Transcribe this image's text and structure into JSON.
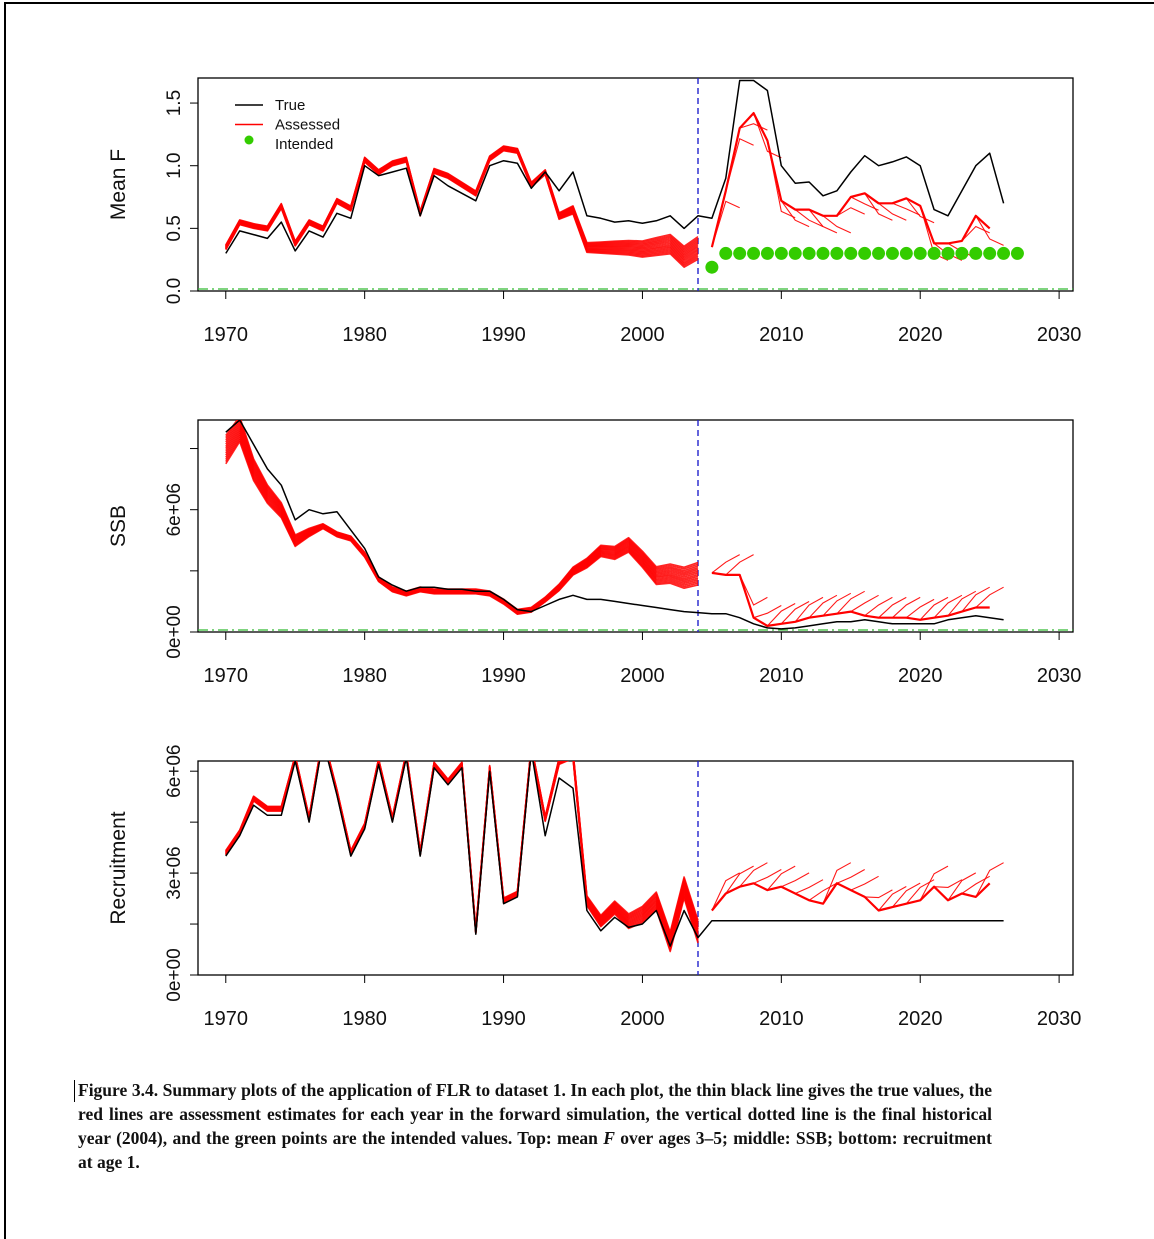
{
  "caption": {
    "p1": "Figure 3.4. Summary plots of the application of FLR to dataset 1. In each plot, the thin black line gives the true values, the red lines are assessment estimates for each year in the forward simulation, the vertical dotted line is the final historical year (2004), and the green points are the intended values. Top: mean ",
    "f": "F",
    "p2": " over ages 3–5; middle: SSB; bottom: recruitment at age 1."
  },
  "colors": {
    "true": "#000000",
    "assessed": "#ff0000",
    "intended": "#33cc00",
    "vline": "#2222cc",
    "hline": "#33bb33"
  },
  "chart_data": [
    {
      "type": "line",
      "ylabel": "Mean F",
      "xlim": [
        1968,
        2031
      ],
      "ylim": [
        0,
        1.7
      ],
      "xticks": [
        1970,
        1980,
        1990,
        2000,
        2010,
        2020,
        2030
      ],
      "yticks": [
        0.0,
        0.5,
        1.0,
        1.5
      ],
      "ytick_labels": [
        "0.0",
        "0.5",
        "1.0",
        "1.5"
      ],
      "final_historical_year": 2004,
      "reference_line_y": 0,
      "legend": {
        "position": "top-left",
        "entries": [
          "True",
          "Assessed",
          "Intended"
        ]
      },
      "series": [
        {
          "name": "True",
          "x": [
            1970,
            1971,
            1972,
            1973,
            1974,
            1975,
            1976,
            1977,
            1978,
            1979,
            1980,
            1981,
            1982,
            1983,
            1984,
            1985,
            1986,
            1987,
            1988,
            1989,
            1990,
            1991,
            1992,
            1993,
            1994,
            1995,
            1996,
            1997,
            1998,
            1999,
            2000,
            2001,
            2002,
            2003,
            2004,
            2005,
            2006,
            2007,
            2008,
            2009,
            2010,
            2011,
            2012,
            2013,
            2014,
            2015,
            2016,
            2017,
            2018,
            2019,
            2020,
            2021,
            2022,
            2023,
            2024,
            2025,
            2026
          ],
          "y": [
            0.3,
            0.48,
            0.45,
            0.42,
            0.55,
            0.32,
            0.48,
            0.43,
            0.62,
            0.58,
            1.0,
            0.92,
            0.95,
            0.98,
            0.6,
            0.92,
            0.84,
            0.78,
            0.72,
            1.0,
            1.04,
            1.02,
            0.82,
            0.95,
            0.8,
            0.95,
            0.6,
            0.58,
            0.55,
            0.56,
            0.54,
            0.56,
            0.6,
            0.5,
            0.6,
            0.58,
            0.9,
            1.68,
            1.68,
            1.6,
            1.0,
            0.86,
            0.87,
            0.76,
            0.8,
            0.95,
            1.08,
            1.0,
            1.03,
            1.07,
            1.0,
            0.65,
            0.6,
            0.8,
            1.0,
            1.1,
            0.7
          ]
        },
        {
          "name": "Assessed",
          "x": [
            1970,
            1971,
            1972,
            1973,
            1974,
            1975,
            1976,
            1977,
            1978,
            1979,
            1980,
            1981,
            1982,
            1983,
            1984,
            1985,
            1986,
            1987,
            1988,
            1989,
            1990,
            1991,
            1992,
            1993,
            1994,
            1995,
            1996,
            1997,
            1998,
            1999,
            2000,
            2001,
            2002,
            2003,
            2004
          ],
          "y": [
            0.35,
            0.55,
            0.52,
            0.5,
            0.68,
            0.38,
            0.55,
            0.5,
            0.72,
            0.66,
            1.05,
            0.95,
            1.02,
            1.05,
            0.62,
            0.96,
            0.92,
            0.85,
            0.78,
            1.06,
            1.14,
            1.12,
            0.85,
            0.95,
            0.6,
            0.65,
            0.35,
            0.35,
            0.35,
            0.35,
            0.34,
            0.36,
            0.38,
            0.28,
            0.35
          ]
        },
        {
          "name": "Assessed (projection)",
          "x": [
            2005,
            2006,
            2007,
            2008,
            2009,
            2010,
            2011,
            2012,
            2013,
            2014,
            2015,
            2016,
            2017,
            2018,
            2019,
            2020,
            2021,
            2022,
            2023,
            2024,
            2025
          ],
          "y": [
            0.35,
            0.8,
            1.3,
            1.42,
            1.2,
            0.72,
            0.65,
            0.65,
            0.6,
            0.6,
            0.75,
            0.78,
            0.7,
            0.7,
            0.74,
            0.68,
            0.38,
            0.38,
            0.4,
            0.6,
            0.5
          ]
        },
        {
          "name": "Intended",
          "x": [
            2005,
            2006,
            2007,
            2008,
            2009,
            2010,
            2011,
            2012,
            2013,
            2014,
            2015,
            2016,
            2017,
            2018,
            2019,
            2020,
            2021,
            2022,
            2023,
            2024,
            2025,
            2026,
            2027
          ],
          "y": [
            0.19,
            0.3,
            0.3,
            0.3,
            0.3,
            0.3,
            0.3,
            0.3,
            0.3,
            0.3,
            0.3,
            0.3,
            0.3,
            0.3,
            0.3,
            0.3,
            0.3,
            0.3,
            0.3,
            0.3,
            0.3,
            0.3,
            0.3
          ]
        }
      ]
    },
    {
      "type": "line",
      "ylabel": "SSB",
      "xlim": [
        1968,
        2031
      ],
      "ylim": [
        0,
        10400000
      ],
      "xticks": [
        1970,
        1980,
        1990,
        2000,
        2010,
        2020,
        2030
      ],
      "yticks": [
        0,
        3000000,
        6000000,
        9000000
      ],
      "ytick_labels": [
        "0e+00",
        "",
        "6e+06",
        ""
      ],
      "final_historical_year": 2004,
      "reference_line_y": 0,
      "series": [
        {
          "name": "True",
          "x": [
            1970,
            1971,
            1972,
            1973,
            1974,
            1975,
            1976,
            1977,
            1978,
            1979,
            1980,
            1981,
            1982,
            1983,
            1984,
            1985,
            1986,
            1987,
            1988,
            1989,
            1990,
            1991,
            1992,
            1993,
            1994,
            1995,
            1996,
            1997,
            1998,
            1999,
            2000,
            2001,
            2002,
            2003,
            2004,
            2005,
            2006,
            2007,
            2008,
            2009,
            2010,
            2011,
            2012,
            2013,
            2014,
            2015,
            2016,
            2017,
            2018,
            2019,
            2020,
            2021,
            2022,
            2023,
            2024,
            2025,
            2026
          ],
          "y": [
            9800000,
            10400000,
            9200000,
            8000000,
            7200000,
            5500000,
            6000000,
            5800000,
            5900000,
            5000000,
            4100000,
            2700000,
            2300000,
            2000000,
            2200000,
            2200000,
            2100000,
            2100000,
            2000000,
            2000000,
            1600000,
            1100000,
            1000000,
            1300000,
            1600000,
            1800000,
            1600000,
            1600000,
            1500000,
            1400000,
            1300000,
            1200000,
            1100000,
            1000000,
            950000,
            900000,
            900000,
            700000,
            400000,
            200000,
            150000,
            200000,
            300000,
            400000,
            500000,
            500000,
            600000,
            500000,
            400000,
            400000,
            400000,
            400000,
            600000,
            700000,
            800000,
            700000,
            600000
          ]
        },
        {
          "name": "Assessed",
          "x": [
            1970,
            1971,
            1972,
            1973,
            1974,
            1975,
            1976,
            1977,
            1978,
            1979,
            1980,
            1981,
            1982,
            1983,
            1984,
            1985,
            1986,
            1987,
            1988,
            1989,
            1990,
            1991,
            1992,
            1993,
            1994,
            1995,
            1996,
            1997,
            1998,
            1999,
            2000,
            2001,
            2002,
            2003,
            2004
          ],
          "y": [
            9000000,
            10000000,
            8000000,
            6800000,
            6000000,
            4500000,
            4900000,
            5200000,
            4800000,
            4600000,
            3800000,
            2600000,
            2100000,
            1900000,
            2100000,
            2000000,
            2000000,
            2000000,
            2000000,
            1900000,
            1500000,
            1000000,
            1100000,
            1600000,
            2200000,
            3000000,
            3400000,
            4000000,
            3900000,
            4300000,
            3600000,
            2800000,
            2900000,
            2700000,
            2900000
          ]
        },
        {
          "name": "Assessed (projection)",
          "x": [
            2005,
            2006,
            2007,
            2008,
            2009,
            2010,
            2011,
            2012,
            2013,
            2014,
            2015,
            2016,
            2017,
            2018,
            2019,
            2020,
            2021,
            2022,
            2023,
            2024,
            2025
          ],
          "y": [
            2900000,
            2800000,
            2800000,
            700000,
            300000,
            400000,
            500000,
            700000,
            800000,
            900000,
            1000000,
            800000,
            700000,
            700000,
            700000,
            600000,
            700000,
            800000,
            1000000,
            1200000,
            1200000
          ]
        }
      ]
    },
    {
      "type": "line",
      "ylabel": "Recruitment",
      "xlim": [
        1968,
        2031
      ],
      "ylim": [
        0,
        6300000
      ],
      "xticks": [
        1970,
        1980,
        1990,
        2000,
        2010,
        2020,
        2030
      ],
      "yticks": [
        0,
        1500000,
        3000000,
        4500000,
        6000000
      ],
      "ytick_labels": [
        "0e+00",
        "",
        "3e+06",
        "",
        "6e+06"
      ],
      "final_historical_year": 2004,
      "series": [
        {
          "name": "True",
          "x": [
            1970,
            1971,
            1972,
            1973,
            1974,
            1975,
            1976,
            1977,
            1978,
            1979,
            1980,
            1981,
            1982,
            1983,
            1984,
            1985,
            1986,
            1987,
            1988,
            1989,
            1990,
            1991,
            1992,
            1993,
            1994,
            1995,
            1996,
            1997,
            1998,
            1999,
            2000,
            2001,
            2002,
            2003,
            2004,
            2005,
            2006,
            2007,
            2008,
            2009,
            2010,
            2011,
            2012,
            2013,
            2014,
            2015,
            2016,
            2017,
            2018,
            2019,
            2020,
            2021,
            2022,
            2023,
            2024,
            2025,
            2026
          ],
          "y": [
            3500000,
            4100000,
            5000000,
            4700000,
            4700000,
            6300000,
            4500000,
            6900000,
            5300000,
            3500000,
            4300000,
            6200000,
            4500000,
            6400000,
            3500000,
            6100000,
            5600000,
            6100000,
            1200000,
            6000000,
            2100000,
            2300000,
            6600000,
            4100000,
            5800000,
            5500000,
            1900000,
            1300000,
            1700000,
            1400000,
            1500000,
            1900000,
            850000,
            1900000,
            1100000,
            1600000,
            1600000,
            1600000,
            1600000,
            1600000,
            1600000,
            1600000,
            1600000,
            1600000,
            1600000,
            1600000,
            1600000,
            1600000,
            1600000,
            1600000,
            1600000,
            1600000,
            1600000,
            1600000,
            1600000,
            1600000,
            1600000
          ]
        },
        {
          "name": "Assessed",
          "x": [
            1970,
            1971,
            1972,
            1973,
            1974,
            1975,
            1976,
            1977,
            1978,
            1979,
            1980,
            1981,
            1982,
            1983,
            1984,
            1985,
            1986,
            1987,
            1988,
            1989,
            1990,
            1991,
            1992,
            1993,
            1994,
            1995,
            1996,
            1997,
            1998,
            1999,
            2000,
            2001,
            2002,
            2003,
            2004
          ],
          "y": [
            3600000,
            4200000,
            5200000,
            4900000,
            4900000,
            6400000,
            4600000,
            7000000,
            5400000,
            3600000,
            4400000,
            6300000,
            4600000,
            6500000,
            3600000,
            6200000,
            5700000,
            6200000,
            1300000,
            6100000,
            2200000,
            2400000,
            6700000,
            4600000,
            6300000,
            6500000,
            2200000,
            1600000,
            2000000,
            1600000,
            1800000,
            2200000,
            1000000,
            2600000,
            1300000
          ]
        },
        {
          "name": "Assessed (projection)",
          "x": [
            2005,
            2006,
            2007,
            2008,
            2009,
            2010,
            2011,
            2012,
            2013,
            2014,
            2015,
            2016,
            2017,
            2018,
            2019,
            2020,
            2021,
            2022,
            2023,
            2024,
            2025
          ],
          "y": [
            1900000,
            2400000,
            2600000,
            2700000,
            2500000,
            2600000,
            2400000,
            2200000,
            2100000,
            2700000,
            2500000,
            2300000,
            1900000,
            2000000,
            2100000,
            2200000,
            2600000,
            2200000,
            2400000,
            2300000,
            2700000
          ]
        }
      ]
    }
  ]
}
